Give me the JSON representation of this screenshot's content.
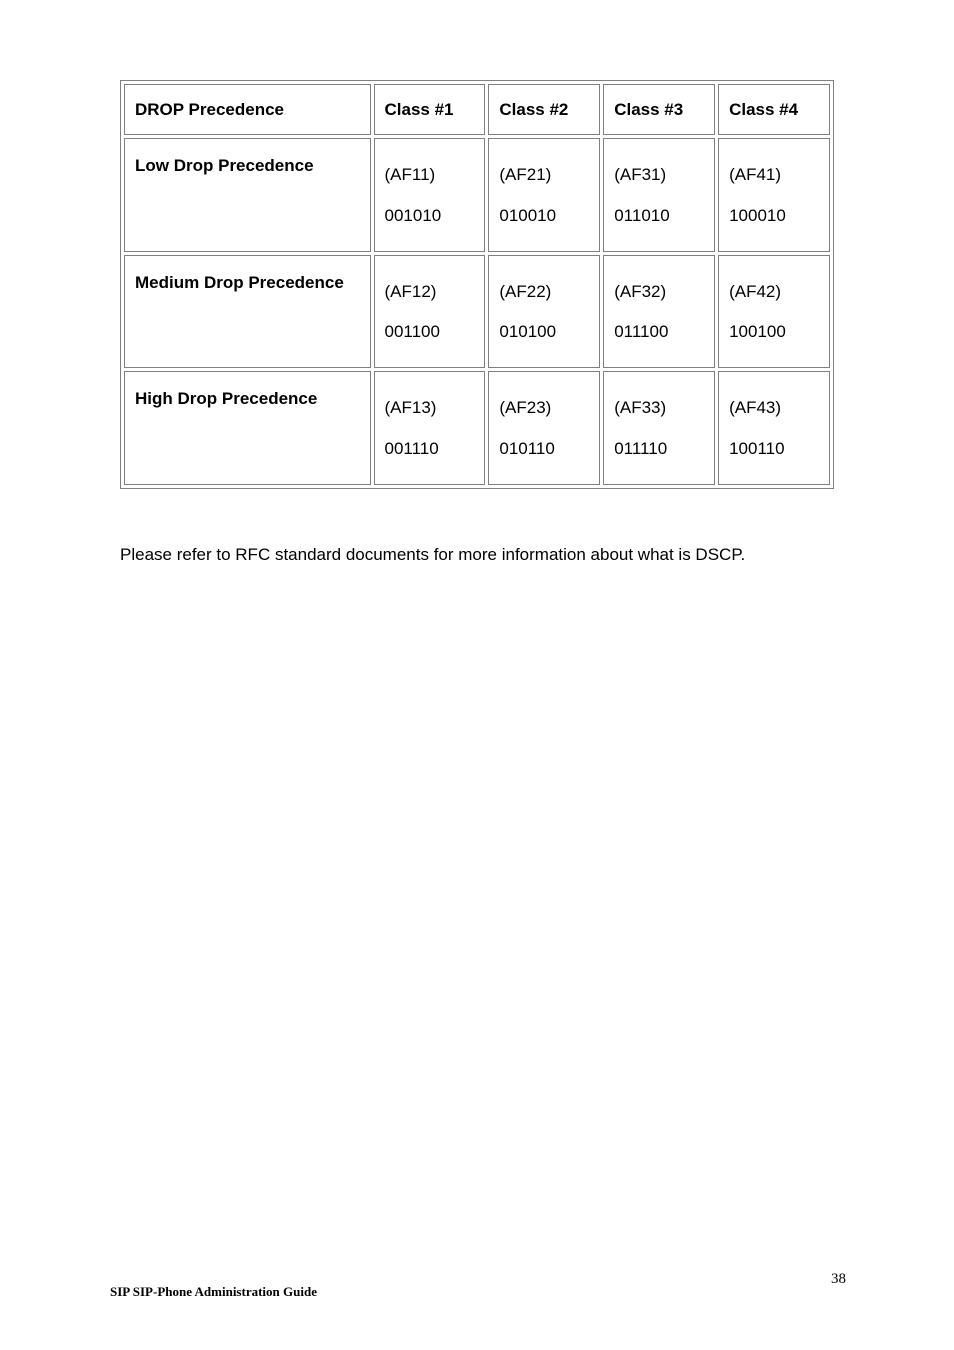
{
  "table": {
    "header": {
      "col0": "DROP Precedence",
      "col1": "Class #1",
      "col2": "Class #2",
      "col3": "Class #3",
      "col4": "Class #4"
    },
    "rows": [
      {
        "label": "Low Drop Precedence",
        "c1_af": "(AF11)",
        "c1_bin": "001010",
        "c2_af": "(AF21)",
        "c2_bin": "010010",
        "c3_af": "(AF31)",
        "c3_bin": "011010",
        "c4_af": "(AF41)",
        "c4_bin": "100010"
      },
      {
        "label": "Medium Drop Precedence",
        "c1_af": "(AF12)",
        "c1_bin": "001100",
        "c2_af": "(AF22)",
        "c2_bin": "010100",
        "c3_af": "(AF32)",
        "c3_bin": "011100",
        "c4_af": "(AF42)",
        "c4_bin": "100100"
      },
      {
        "label": "High Drop Precedence",
        "c1_af": "(AF13)",
        "c1_bin": "001110",
        "c2_af": "(AF23)",
        "c2_bin": "010110",
        "c3_af": "(AF33)",
        "c3_bin": "011110",
        "c4_af": "(AF43)",
        "c4_bin": "100110"
      }
    ]
  },
  "paragraph": "Please refer to RFC standard documents for more information about what is DSCP.",
  "footer": {
    "left": "SIP SIP-Phone    Administration Guide",
    "page": "38"
  },
  "colors": {
    "border": "#808080",
    "background": "#ffffff",
    "text": "#000000"
  }
}
